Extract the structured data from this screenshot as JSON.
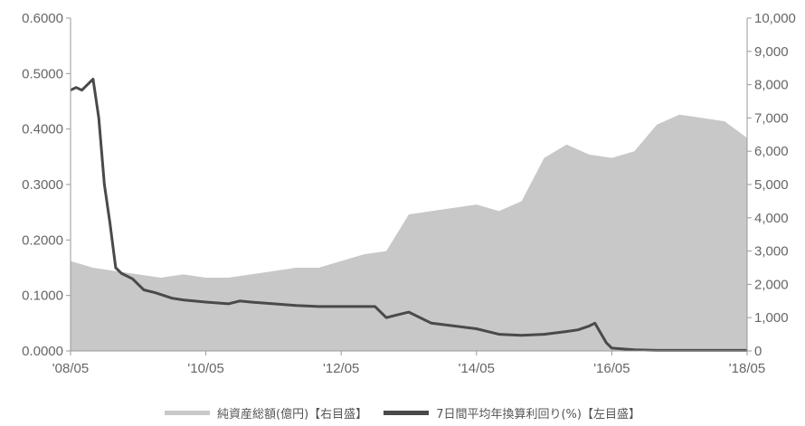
{
  "chart_data": {
    "type": "area+line",
    "x_tick_labels": [
      "'08/05",
      "'10/05",
      "'12/05",
      "'14/05",
      "'16/05",
      "'18/05"
    ],
    "left_axis": {
      "ylim": [
        0,
        0.6
      ],
      "tick_labels": [
        "0.0000",
        "0.1000",
        "0.2000",
        "0.3000",
        "0.4000",
        "0.5000",
        "0.6000"
      ]
    },
    "right_axis": {
      "ylim": [
        0,
        10000
      ],
      "tick_labels": [
        "0",
        "1,000",
        "2,000",
        "3,000",
        "4,000",
        "5,000",
        "6,000",
        "7,000",
        "8,000",
        "9,000",
        "10,000"
      ]
    },
    "grid": false,
    "legend_position": "bottom",
    "series": [
      {
        "name": "純資産総額(億円)【右目盛】",
        "kind": "area",
        "axis": "right",
        "color": "#c8c8c8",
        "x": [
          "2008-05",
          "2008-09",
          "2009-01",
          "2009-05",
          "2009-09",
          "2010-01",
          "2010-05",
          "2010-09",
          "2011-01",
          "2011-05",
          "2011-09",
          "2012-01",
          "2012-05",
          "2012-09",
          "2013-01",
          "2013-05",
          "2013-09",
          "2014-01",
          "2014-05",
          "2014-09",
          "2015-01",
          "2015-05",
          "2015-09",
          "2016-01",
          "2016-05",
          "2016-09",
          "2017-01",
          "2017-05",
          "2017-09",
          "2018-01",
          "2018-05"
        ],
        "values": [
          2700,
          2500,
          2400,
          2300,
          2200,
          2300,
          2200,
          2200,
          2300,
          2400,
          2500,
          2500,
          2700,
          2900,
          3000,
          4100,
          4200,
          4300,
          4400,
          4200,
          4500,
          5800,
          6200,
          5900,
          5800,
          6000,
          6800,
          7100,
          7000,
          6900,
          6400
        ]
      },
      {
        "name": "7日間平均年換算利回り(%)【左目盛】",
        "kind": "line",
        "axis": "left",
        "color": "#4a4a4a",
        "x": [
          "2008-05",
          "2008-06",
          "2008-07",
          "2008-08",
          "2008-09",
          "2008-10",
          "2008-11",
          "2008-12",
          "2009-01",
          "2009-02",
          "2009-04",
          "2009-05",
          "2009-06",
          "2009-08",
          "2009-11",
          "2010-01",
          "2010-05",
          "2010-09",
          "2010-11",
          "2011-01",
          "2011-05",
          "2011-09",
          "2012-01",
          "2012-05",
          "2012-09",
          "2012-11",
          "2013-01",
          "2013-03",
          "2013-05",
          "2013-09",
          "2014-01",
          "2014-05",
          "2014-09",
          "2015-01",
          "2015-05",
          "2015-09",
          "2015-11",
          "2016-01",
          "2016-02",
          "2016-04",
          "2016-05",
          "2016-09",
          "2017-01",
          "2018-05"
        ],
        "values": [
          0.47,
          0.475,
          0.47,
          0.48,
          0.49,
          0.42,
          0.3,
          0.23,
          0.15,
          0.14,
          0.13,
          0.12,
          0.11,
          0.105,
          0.095,
          0.092,
          0.088,
          0.085,
          0.09,
          0.088,
          0.085,
          0.082,
          0.08,
          0.08,
          0.08,
          0.08,
          0.06,
          0.065,
          0.07,
          0.05,
          0.045,
          0.04,
          0.03,
          0.028,
          0.03,
          0.035,
          0.038,
          0.045,
          0.05,
          0.015,
          0.005,
          0.002,
          0.001,
          0.001
        ]
      }
    ]
  }
}
